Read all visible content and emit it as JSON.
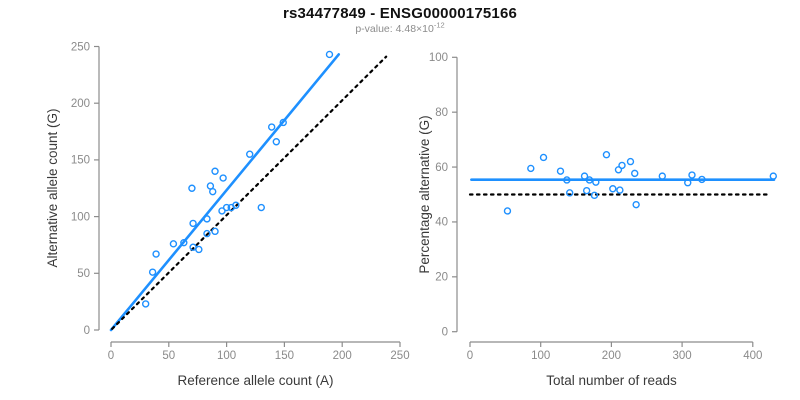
{
  "header": {
    "title": "rs34477849 - ENSG00000175166",
    "subtitle_prefix": "p-value: ",
    "subtitle_mantissa": "4.48×10",
    "subtitle_exponent": "-12"
  },
  "colors": {
    "accent_blue": "#1E90FF",
    "axis_gray": "#8c8c8c",
    "tick_label_gray": "#8a8a8a",
    "axis_title_dark": "#3a3a3a",
    "dotted_black": "#000000"
  },
  "chart_data": [
    {
      "type": "scatter",
      "title": "",
      "xlabel": "Reference allele count (A)",
      "ylabel": "Alternative allele count (G)",
      "xlim": [
        0,
        250
      ],
      "ylim": [
        0,
        250
      ],
      "xticks": [
        0,
        50,
        100,
        150,
        200,
        250
      ],
      "yticks": [
        0,
        50,
        100,
        150,
        200,
        250
      ],
      "grid": false,
      "legend": "none",
      "points": [
        [
          30,
          23
        ],
        [
          36,
          51
        ],
        [
          39,
          67
        ],
        [
          54,
          76
        ],
        [
          63,
          77
        ],
        [
          71,
          73
        ],
        [
          76,
          71
        ],
        [
          70,
          125
        ],
        [
          71,
          94
        ],
        [
          83,
          85
        ],
        [
          83,
          98
        ],
        [
          86,
          127
        ],
        [
          88,
          122
        ],
        [
          90,
          87
        ],
        [
          90,
          140
        ],
        [
          96,
          105
        ],
        [
          97,
          134
        ],
        [
          100,
          108
        ],
        [
          104,
          108
        ],
        [
          108,
          110
        ],
        [
          120,
          155
        ],
        [
          130,
          108
        ],
        [
          139,
          179
        ],
        [
          143,
          166
        ],
        [
          149,
          183
        ],
        [
          189,
          243
        ]
      ],
      "lines": [
        {
          "name": "regression-fit",
          "style": "solid",
          "color": "#1E90FF",
          "from": [
            0,
            0
          ],
          "to": [
            197,
            243
          ]
        },
        {
          "name": "identity-1to1",
          "style": "dotted",
          "color": "#000000",
          "from": [
            1,
            1
          ],
          "to": [
            238,
            241
          ]
        }
      ]
    },
    {
      "type": "scatter",
      "title": "",
      "xlabel": "Total number of reads",
      "ylabel": "Percentage alternative (G)",
      "xlim": [
        0,
        430
      ],
      "ylim": [
        0,
        100
      ],
      "xticks": [
        0,
        100,
        200,
        300,
        400
      ],
      "yticks": [
        0,
        20,
        40,
        60,
        80,
        100
      ],
      "grid": false,
      "legend": "none",
      "points": [
        [
          53,
          44
        ],
        [
          86,
          59.5
        ],
        [
          104,
          63.5
        ],
        [
          128,
          58.5
        ],
        [
          137,
          55.3
        ],
        [
          141,
          50.6
        ],
        [
          162,
          56.7
        ],
        [
          165,
          51.4
        ],
        [
          169,
          55.3
        ],
        [
          176,
          49.7
        ],
        [
          178,
          54.5
        ],
        [
          193,
          64.5
        ],
        [
          202,
          52.1
        ],
        [
          210,
          59
        ],
        [
          212,
          51.6
        ],
        [
          215,
          60.6
        ],
        [
          227,
          62
        ],
        [
          233,
          57.7
        ],
        [
          235,
          46.3
        ],
        [
          272,
          56.7
        ],
        [
          308,
          54.3
        ],
        [
          314,
          57.1
        ],
        [
          328,
          55.5
        ],
        [
          429,
          56.7
        ]
      ],
      "lines": [
        {
          "name": "mean-percentage",
          "style": "solid",
          "color": "#1E90FF",
          "from": [
            2,
            55.4
          ],
          "to": [
            430,
            55.4
          ]
        },
        {
          "name": "fifty-percent",
          "style": "dotted",
          "color": "#000000",
          "from": [
            0,
            50
          ],
          "to": [
            424,
            50
          ]
        }
      ]
    }
  ]
}
